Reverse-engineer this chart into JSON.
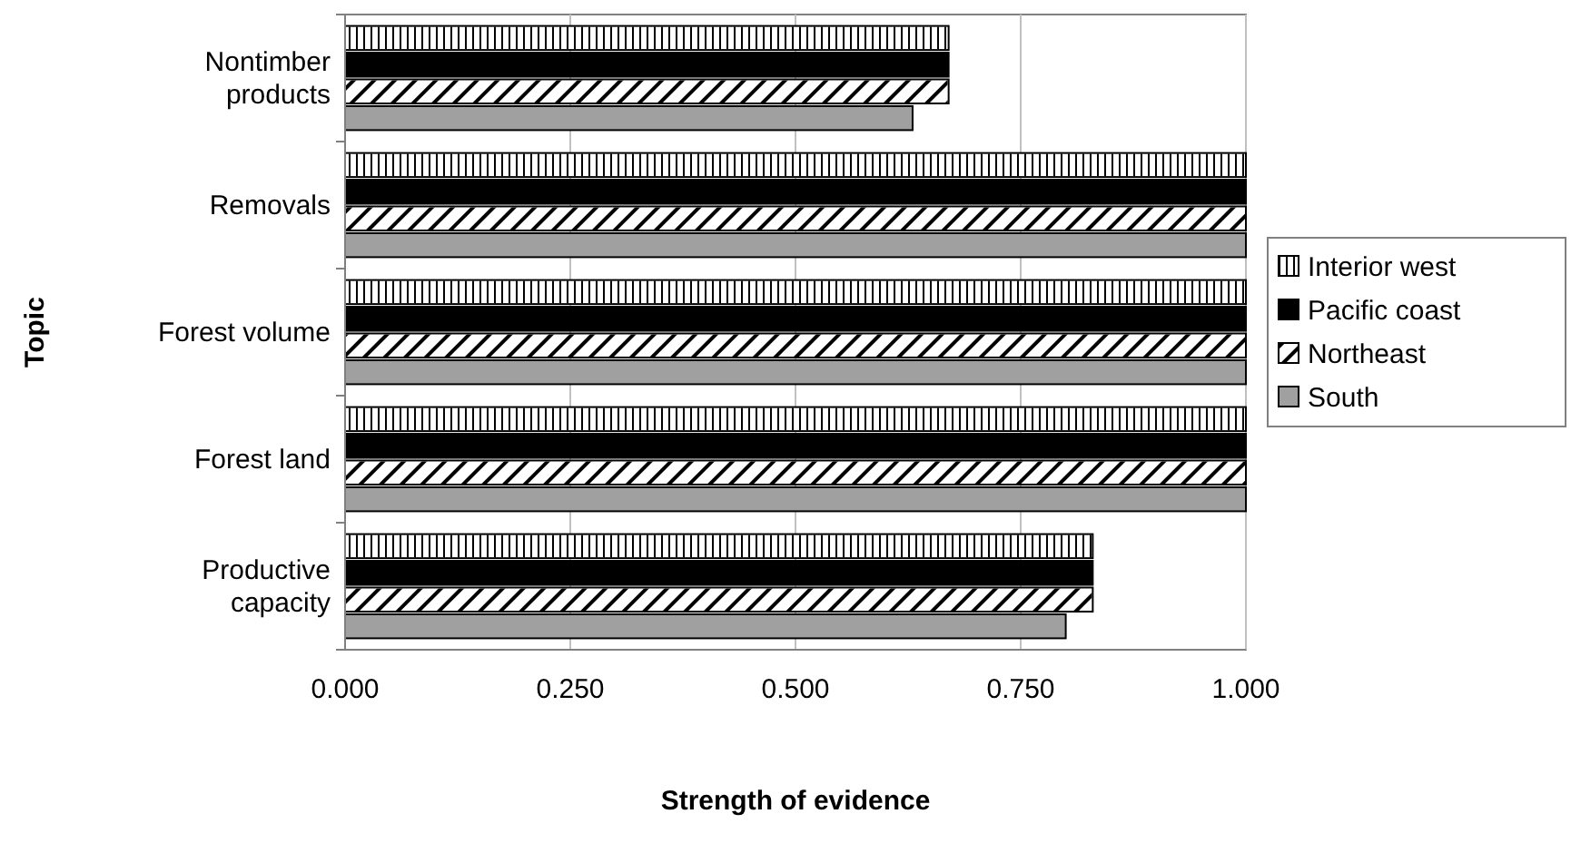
{
  "chart_data": {
    "type": "bar",
    "orientation": "horizontal",
    "xlabel": "Strength of evidence",
    "ylabel": "Topic",
    "categories": [
      "Nontimber products",
      "Removals",
      "Forest volume",
      "Forest land",
      "Productive capacity"
    ],
    "series": [
      {
        "name": "Interior west",
        "color": "#ffffff",
        "values": [
          0.67,
          1,
          1,
          1,
          0.83
        ]
      },
      {
        "name": "Pacific coast",
        "color": "#000000",
        "values": [
          0.67,
          1,
          1,
          1,
          0.83
        ]
      },
      {
        "name": "Northeast",
        "color": "#ffffff",
        "values": [
          0.67,
          1,
          1,
          1,
          0.83
        ]
      },
      {
        "name": "South",
        "color": "#a0a0a0",
        "values": [
          0.63,
          1,
          1,
          1,
          0.8
        ]
      }
    ],
    "xlim": [
      0,
      1
    ],
    "xticks": [
      {
        "value": 0,
        "label": "0.000"
      },
      {
        "value": 0.25,
        "label": "0.250"
      },
      {
        "value": 0.5,
        "label": "0.500"
      },
      {
        "value": 0.75,
        "label": "0.750"
      },
      {
        "value": 1,
        "label": "1.000"
      }
    ],
    "grid": "x",
    "legend": "right"
  }
}
